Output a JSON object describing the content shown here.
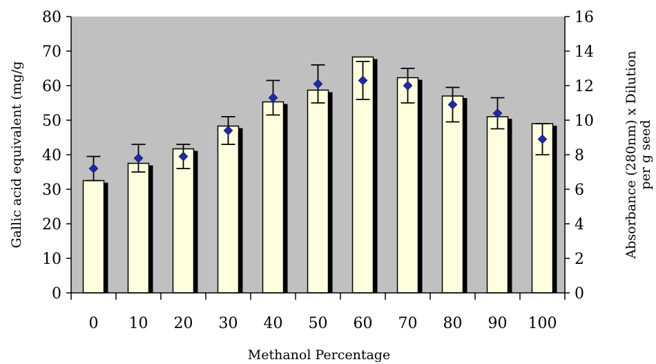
{
  "chart_data": {
    "type": "bar",
    "categories": [
      "0",
      "10",
      "20",
      "30",
      "40",
      "50",
      "60",
      "70",
      "80",
      "90",
      "100"
    ],
    "series": [
      {
        "kind": "bar",
        "axis": "left",
        "values": [
          32.5,
          37.5,
          41.7,
          48.3,
          55.3,
          58.7,
          68.3,
          62.3,
          57.0,
          51.0,
          49.0
        ]
      },
      {
        "kind": "point",
        "axis": "right",
        "values": [
          7.2,
          7.8,
          7.9,
          9.4,
          11.3,
          12.1,
          12.3,
          12.0,
          10.9,
          10.4,
          8.9
        ],
        "errors": [
          0.7,
          0.8,
          0.7,
          0.8,
          1.0,
          1.1,
          1.1,
          1.0,
          1.0,
          0.9,
          0.9
        ]
      }
    ],
    "xlabel": "Methanol Percentage",
    "ylabel": "Gallic acid equivalent (mg/g",
    "y2label_line1": "Absorbance (280nm) x Dilution",
    "y2label_line2": "per g seed",
    "ylim": [
      0,
      80
    ],
    "y2lim": [
      0,
      16
    ],
    "yticks": [
      "0",
      "10",
      "20",
      "30",
      "40",
      "50",
      "60",
      "70",
      "80"
    ],
    "y2ticks": [
      "0",
      "2",
      "4",
      "6",
      "8",
      "10",
      "12",
      "14",
      "16"
    ],
    "colors": {
      "plot_background": "#c0c0c0",
      "bar_fill": "#ffffe0",
      "bar_shadow": "#000000",
      "marker": "#1f2a9c"
    }
  }
}
